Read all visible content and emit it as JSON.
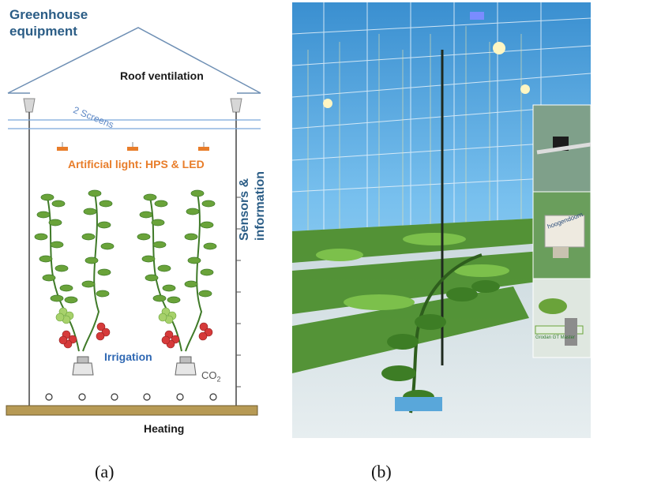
{
  "panel_a": {
    "title_line1": "Greenhouse",
    "title_line2": "equipment",
    "roof_ventilation": "Roof ventilation",
    "screens": "2 Screens",
    "artificial_light": "Artificial light: HPS & LED",
    "sensors_line1": "Sensors &",
    "sensors_line2": "information",
    "irrigation": "Irrigation",
    "co2": "CO",
    "co2_sub": "2",
    "heating": "Heating",
    "label": "(a)",
    "colors": {
      "title": "#2b5d86",
      "light_text": "#e87d2a",
      "irrigation_text": "#2f68b3",
      "leaf": "#6aa33a",
      "leaf_dark": "#3f7a28",
      "tomato": "#d63a3a",
      "floor": "#b79a55"
    }
  },
  "panel_b": {
    "label": "(b)",
    "sensor_brand": "hoogendoorn",
    "sign_1": "Grodan GT Master",
    "sign_2": "GT Master"
  }
}
